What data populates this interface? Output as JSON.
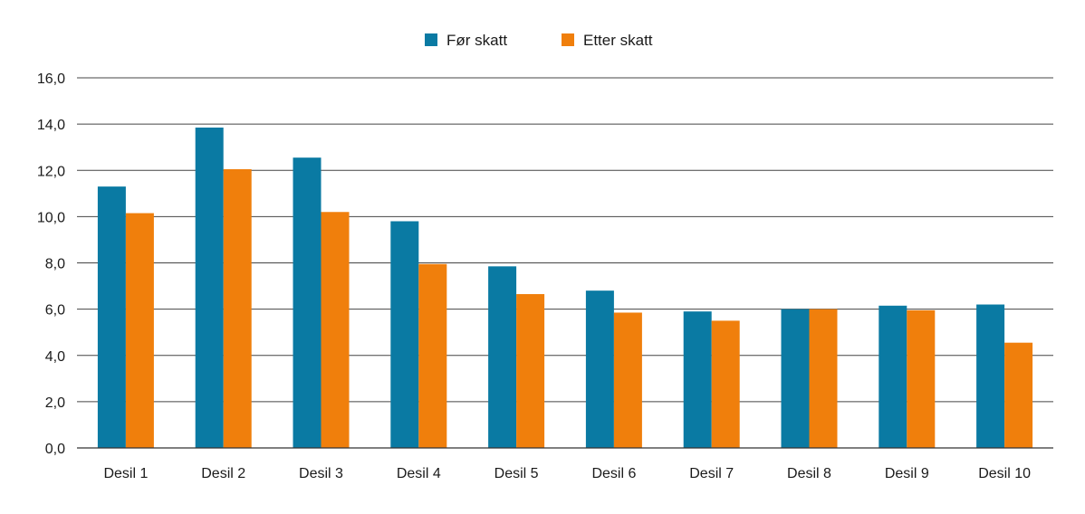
{
  "chart_data": {
    "type": "bar",
    "title": "",
    "xlabel": "",
    "ylabel": "",
    "ylim": [
      0,
      16
    ],
    "yticks": [
      0,
      2,
      4,
      6,
      8,
      10,
      12,
      14,
      16
    ],
    "ytick_labels": [
      "0,0",
      "2,0",
      "4,0",
      "6,0",
      "8,0",
      "10,0",
      "12,0",
      "14,0",
      "16,0"
    ],
    "grid": true,
    "legend_position": "top-center",
    "categories": [
      "Desil 1",
      "Desil 2",
      "Desil 3",
      "Desil 4",
      "Desil 5",
      "Desil 6",
      "Desil 7",
      "Desil 8",
      "Desil 9",
      "Desil 10"
    ],
    "series": [
      {
        "name": "Før skatt",
        "color": "#0a7aa3",
        "values": [
          11.3,
          13.85,
          12.55,
          9.8,
          7.85,
          6.8,
          5.9,
          6.0,
          6.15,
          6.2
        ]
      },
      {
        "name": "Etter skatt",
        "color": "#f07f0c",
        "values": [
          10.15,
          12.05,
          10.2,
          7.95,
          6.65,
          5.85,
          5.5,
          6.0,
          5.95,
          4.55
        ]
      }
    ]
  }
}
